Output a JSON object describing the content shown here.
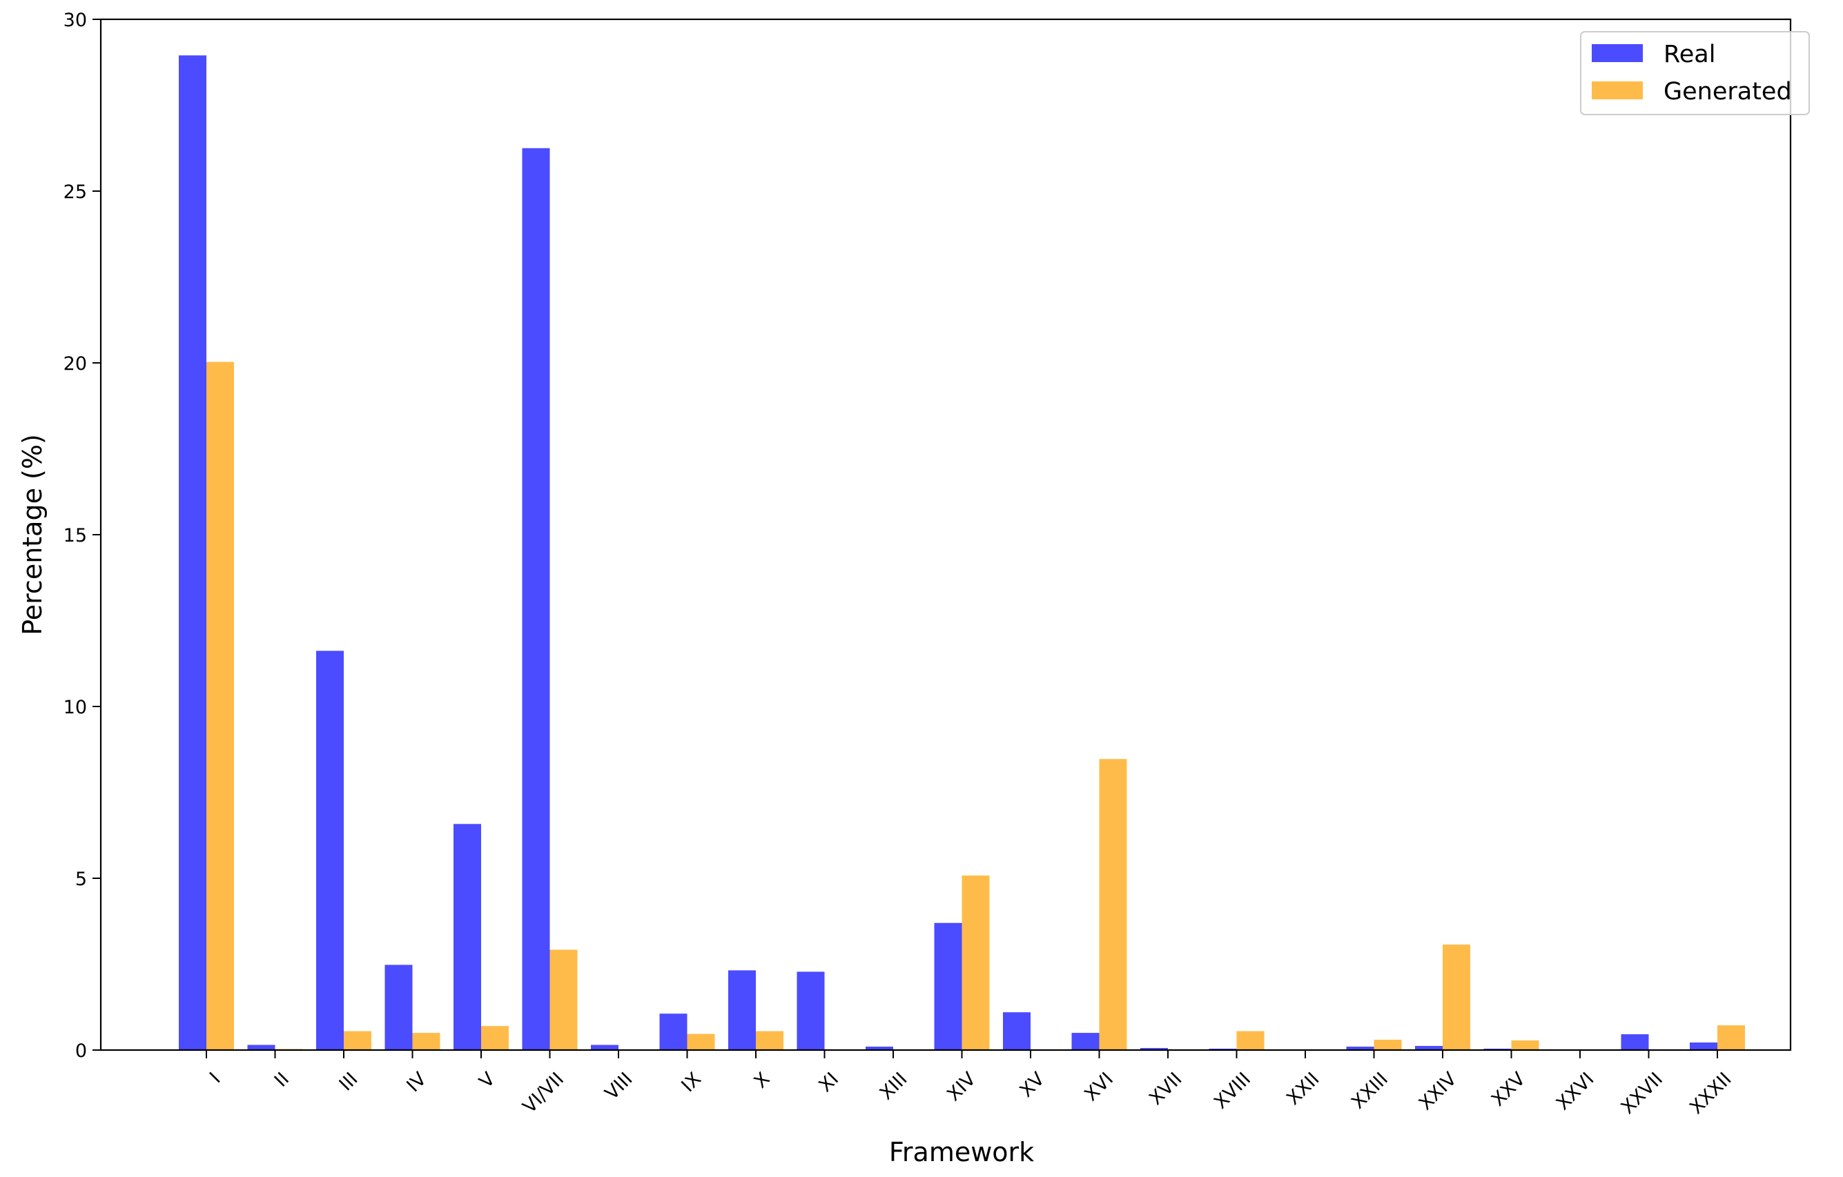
{
  "chart_data": {
    "type": "bar",
    "xlabel": "Framework",
    "ylabel": "Percentage (%)",
    "ylim": [
      0,
      30
    ],
    "yticks": [
      "0",
      "5",
      "10",
      "15",
      "20",
      "25",
      "30"
    ],
    "grid": false,
    "legend_position": "top-right",
    "categories": [
      "I",
      "II",
      "III",
      "IV",
      "V",
      "VI/VII",
      "VIII",
      "IX",
      "X",
      "XI",
      "XIII",
      "XIV",
      "XV",
      "XVI",
      "XVII",
      "XVIII",
      "XXII",
      "XXIII",
      "XXIV",
      "XXV",
      "XXVI",
      "XXVII",
      "XXXII"
    ],
    "series": [
      {
        "name": "Real",
        "color": "#4b4bff",
        "values": [
          28.95,
          0.15,
          11.62,
          2.48,
          6.58,
          26.25,
          0.15,
          1.06,
          2.32,
          2.28,
          0.1,
          3.7,
          1.1,
          0.5,
          0.06,
          0.04,
          0.02,
          0.1,
          0.12,
          0.04,
          0.02,
          0.46,
          0.22
        ]
      },
      {
        "name": "Generated",
        "color": "#ffbb4a",
        "values": [
          20.03,
          0.03,
          0.55,
          0.5,
          0.7,
          2.92,
          0.0,
          0.47,
          0.55,
          0.0,
          0.0,
          5.08,
          0.02,
          8.47,
          0.02,
          0.55,
          0.0,
          0.3,
          3.07,
          0.28,
          0.0,
          0.02,
          0.72
        ]
      }
    ]
  }
}
